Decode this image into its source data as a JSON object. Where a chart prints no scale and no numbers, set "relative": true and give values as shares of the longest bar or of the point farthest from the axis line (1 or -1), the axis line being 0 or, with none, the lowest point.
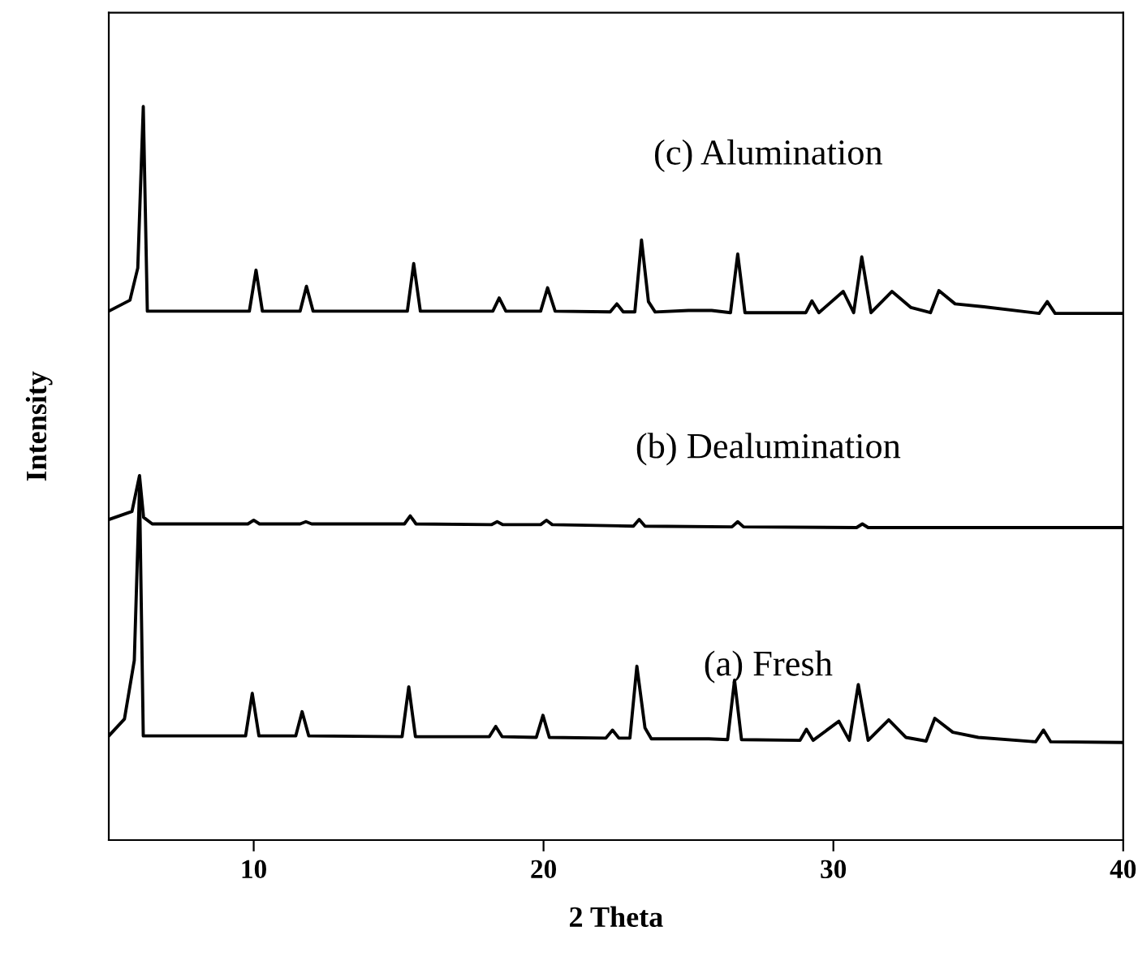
{
  "chart_data": {
    "type": "line",
    "xlabel": "2 Theta",
    "ylabel": "Intensity",
    "relative": true,
    "xlim": [
      5,
      40
    ],
    "xticks": [
      10,
      20,
      30,
      40
    ],
    "tick_labels": "x",
    "grid": false,
    "legend": false,
    "marker": "none",
    "line_style": "solid",
    "series": [
      {
        "name": "(a) Fresh",
        "color": "#000000",
        "x": [
          5,
          5.54,
          5.88,
          6.06,
          6.19,
          9.72,
          9.95,
          10.18,
          11.45,
          11.67,
          11.9,
          15.12,
          15.35,
          15.58,
          18.13,
          18.35,
          18.57,
          19.75,
          19.98,
          20.2,
          22.15,
          22.38,
          22.6,
          22.98,
          23.22,
          23.5,
          23.72,
          24.9,
          25.7,
          26.35,
          26.59,
          26.83,
          28.85,
          29.07,
          29.3,
          30.19,
          30.55,
          30.86,
          31.2,
          31.91,
          32.5,
          33.2,
          33.5,
          34.12,
          35.0,
          36.98,
          37.25,
          37.5,
          40
        ],
        "values": [
          0.142,
          0.165,
          0.245,
          0.48,
          0.142,
          0.142,
          0.2,
          0.142,
          0.142,
          0.175,
          0.142,
          0.141,
          0.209,
          0.141,
          0.141,
          0.155,
          0.141,
          0.14,
          0.17,
          0.14,
          0.139,
          0.15,
          0.139,
          0.139,
          0.237,
          0.153,
          0.138,
          0.138,
          0.138,
          0.137,
          0.218,
          0.137,
          0.136,
          0.151,
          0.136,
          0.162,
          0.136,
          0.212,
          0.136,
          0.164,
          0.14,
          0.135,
          0.166,
          0.147,
          0.14,
          0.134,
          0.15,
          0.134,
          0.133
        ]
      },
      {
        "name": "(b) Dealumination",
        "color": "#000000",
        "x": [
          5,
          5.8,
          6.06,
          6.2,
          6.5,
          9.8,
          10.0,
          10.2,
          11.6,
          11.8,
          12.0,
          15.2,
          15.4,
          15.6,
          18.2,
          18.4,
          18.6,
          19.9,
          20.1,
          20.3,
          23.1,
          23.3,
          23.5,
          26.5,
          26.7,
          26.9,
          30.8,
          31.0,
          31.2,
          40
        ],
        "values": [
          0.437,
          0.448,
          0.497,
          0.44,
          0.431,
          0.431,
          0.436,
          0.431,
          0.431,
          0.434,
          0.431,
          0.431,
          0.442,
          0.431,
          0.43,
          0.434,
          0.43,
          0.43,
          0.436,
          0.43,
          0.428,
          0.437,
          0.428,
          0.427,
          0.434,
          0.427,
          0.426,
          0.431,
          0.426,
          0.426
        ]
      },
      {
        "name": "(c) Alumination",
        "color": "#000000",
        "x": [
          5,
          5.73,
          6.0,
          6.19,
          6.33,
          9.85,
          10.08,
          10.3,
          11.6,
          11.82,
          12.05,
          15.3,
          15.52,
          15.75,
          18.25,
          18.47,
          18.7,
          19.9,
          20.14,
          20.4,
          22.3,
          22.53,
          22.75,
          23.15,
          23.38,
          23.62,
          23.85,
          25.0,
          25.8,
          26.45,
          26.7,
          26.95,
          29.05,
          29.26,
          29.5,
          30.34,
          30.7,
          30.98,
          31.3,
          32.02,
          32.68,
          33.35,
          33.64,
          34.2,
          35.2,
          37.1,
          37.38,
          37.65,
          40
        ],
        "values": [
          0.721,
          0.736,
          0.78,
          1.0,
          0.721,
          0.721,
          0.777,
          0.721,
          0.721,
          0.755,
          0.721,
          0.721,
          0.786,
          0.721,
          0.721,
          0.739,
          0.721,
          0.721,
          0.753,
          0.721,
          0.72,
          0.731,
          0.72,
          0.72,
          0.818,
          0.734,
          0.72,
          0.722,
          0.722,
          0.719,
          0.799,
          0.719,
          0.719,
          0.735,
          0.719,
          0.748,
          0.719,
          0.795,
          0.719,
          0.748,
          0.726,
          0.719,
          0.749,
          0.731,
          0.727,
          0.718,
          0.734,
          0.718,
          0.718
        ]
      }
    ]
  }
}
